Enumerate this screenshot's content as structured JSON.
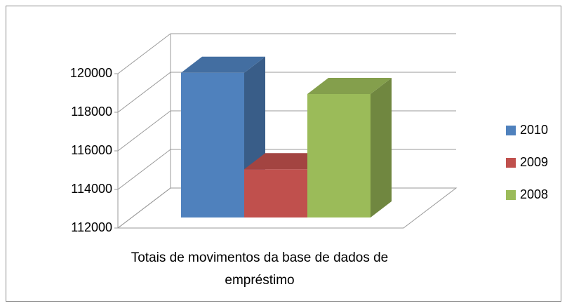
{
  "chart_data": {
    "type": "bar3d",
    "categories": [
      "Totais de movimentos da base de dados de empréstimo"
    ],
    "series": [
      {
        "name": "2010",
        "color": "#4f81bd",
        "values": [
          119500
        ]
      },
      {
        "name": "2009",
        "color": "#c0504d",
        "values": [
          114500
        ]
      },
      {
        "name": "2008",
        "color": "#9bbb59",
        "values": [
          118400
        ]
      }
    ],
    "ylim": [
      112000,
      120000
    ],
    "yticks": [
      112000,
      114000,
      116000,
      118000,
      120000
    ],
    "grid": true,
    "legend": "right"
  }
}
